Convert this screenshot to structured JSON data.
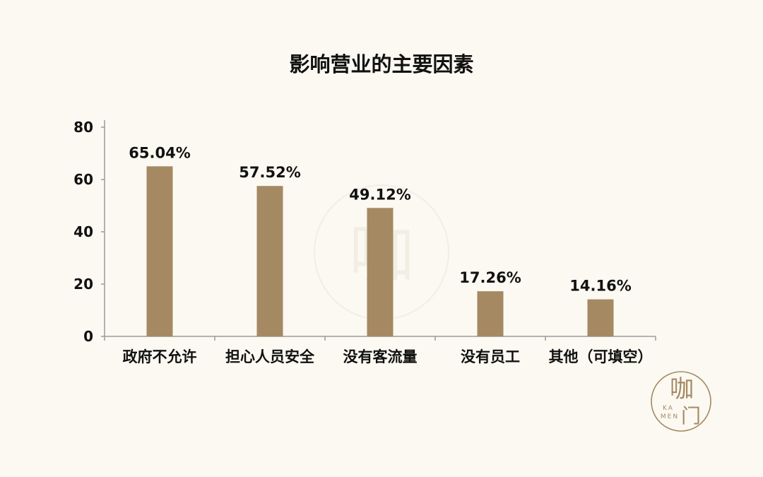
{
  "chart_data": {
    "type": "bar",
    "title": "影响营业的主要因素",
    "categories": [
      "政府不允许",
      "担心人员安全",
      "没有客流量",
      "没有员工",
      "其他（可填空）"
    ],
    "values": [
      65.04,
      57.52,
      49.12,
      17.26,
      14.16
    ],
    "data_labels": [
      "65.04%",
      "57.52%",
      "49.12%",
      "17.26%",
      "14.16%"
    ],
    "yticks": [
      "0",
      "20",
      "40",
      "60",
      "80"
    ],
    "xlabel": "",
    "ylabel": "",
    "ylim": [
      0,
      80
    ],
    "grid": false,
    "bar_color": "#a58963"
  },
  "watermark": {
    "chars": "咖门",
    "latin_top": "KA",
    "latin_bottom": "MEN",
    "color": "#a58963"
  }
}
